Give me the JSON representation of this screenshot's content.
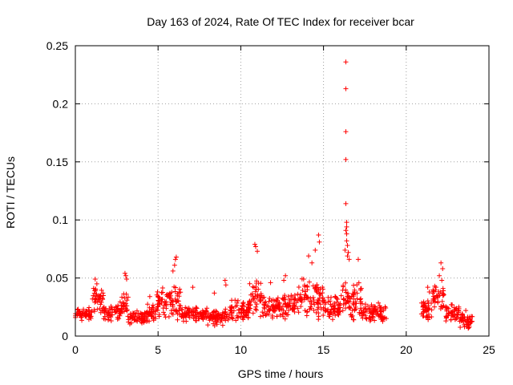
{
  "chart_data": {
    "type": "scatter",
    "title": "Day 163 of 2024, Rate Of TEC Index for receiver bcar",
    "xlabel": "GPS time / hours",
    "ylabel": "ROTI / TECUs",
    "xlim": [
      0,
      25
    ],
    "ylim": [
      0,
      0.25
    ],
    "xticks": [
      "0",
      "5",
      "10",
      "15",
      "20",
      "25"
    ],
    "yticks": [
      "0",
      "0.05",
      "0.1",
      "0.15",
      "0.2",
      "0.25"
    ],
    "grid": true,
    "marker": "plus",
    "color": "#ff0000",
    "series": [
      {
        "x": [
          16.35,
          16.35,
          16.35,
          16.35,
          16.35,
          16.4,
          16.4,
          16.35,
          16.4,
          16.4,
          16.45,
          16.5,
          16.55,
          16.3,
          16.45,
          17.1,
          10.85,
          10.9,
          11.0,
          14.7,
          14.75,
          14.5,
          14.1,
          14.3,
          6.1,
          6.05,
          6.0,
          5.9,
          3.0,
          3.05,
          3.1,
          1.2,
          1.3,
          1.1,
          22.1,
          22.2,
          22.0,
          22.15,
          21.8,
          21.3,
          21.4,
          23.6,
          12.7,
          12.6,
          13.8,
          9.05,
          9.1,
          11.8,
          4.5,
          7.1,
          8.4
        ],
        "y": [
          0.236,
          0.213,
          0.176,
          0.152,
          0.114,
          0.098,
          0.094,
          0.091,
          0.088,
          0.082,
          0.078,
          0.072,
          0.066,
          0.074,
          0.069,
          0.066,
          0.079,
          0.077,
          0.073,
          0.087,
          0.081,
          0.074,
          0.069,
          0.063,
          0.068,
          0.066,
          0.061,
          0.056,
          0.054,
          0.052,
          0.049,
          0.049,
          0.045,
          0.041,
          0.063,
          0.058,
          0.052,
          0.048,
          0.042,
          0.042,
          0.038,
          0.022,
          0.052,
          0.048,
          0.049,
          0.048,
          0.044,
          0.046,
          0.034,
          0.042,
          0.037
        ]
      }
    ],
    "bands": [
      {
        "x_start": 0.0,
        "x_end": 1.0,
        "y_low": 0.012,
        "y_high": 0.026
      },
      {
        "x_start": 1.0,
        "x_end": 1.7,
        "y_low": 0.018,
        "y_high": 0.045
      },
      {
        "x_start": 1.7,
        "x_end": 2.8,
        "y_low": 0.012,
        "y_high": 0.03
      },
      {
        "x_start": 2.8,
        "x_end": 3.2,
        "y_low": 0.015,
        "y_high": 0.04
      },
      {
        "x_start": 3.2,
        "x_end": 4.3,
        "y_low": 0.009,
        "y_high": 0.022
      },
      {
        "x_start": 4.3,
        "x_end": 4.9,
        "y_low": 0.012,
        "y_high": 0.03
      },
      {
        "x_start": 4.9,
        "x_end": 6.4,
        "y_low": 0.013,
        "y_high": 0.045
      },
      {
        "x_start": 6.4,
        "x_end": 8.0,
        "y_low": 0.012,
        "y_high": 0.026
      },
      {
        "x_start": 8.0,
        "x_end": 9.3,
        "y_low": 0.008,
        "y_high": 0.024
      },
      {
        "x_start": 9.3,
        "x_end": 10.5,
        "y_low": 0.012,
        "y_high": 0.033
      },
      {
        "x_start": 10.5,
        "x_end": 11.3,
        "y_low": 0.015,
        "y_high": 0.05
      },
      {
        "x_start": 11.3,
        "x_end": 12.5,
        "y_low": 0.015,
        "y_high": 0.035
      },
      {
        "x_start": 12.5,
        "x_end": 13.5,
        "y_low": 0.014,
        "y_high": 0.038
      },
      {
        "x_start": 13.5,
        "x_end": 15.0,
        "y_low": 0.013,
        "y_high": 0.05
      },
      {
        "x_start": 15.0,
        "x_end": 16.0,
        "y_low": 0.012,
        "y_high": 0.035
      },
      {
        "x_start": 16.0,
        "x_end": 17.3,
        "y_low": 0.012,
        "y_high": 0.048
      },
      {
        "x_start": 17.3,
        "x_end": 18.8,
        "y_low": 0.011,
        "y_high": 0.03
      },
      {
        "x_start": 20.9,
        "x_end": 21.6,
        "y_low": 0.012,
        "y_high": 0.032
      },
      {
        "x_start": 21.6,
        "x_end": 22.3,
        "y_low": 0.02,
        "y_high": 0.045
      },
      {
        "x_start": 22.3,
        "x_end": 23.2,
        "y_low": 0.012,
        "y_high": 0.028
      },
      {
        "x_start": 23.2,
        "x_end": 24.0,
        "y_low": 0.006,
        "y_high": 0.02
      }
    ]
  }
}
